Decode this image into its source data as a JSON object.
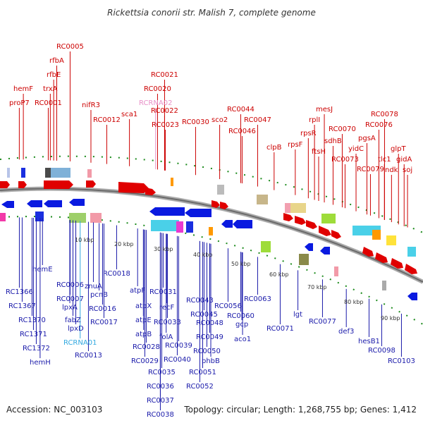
{
  "title": "Rickettsia conorii str. Malish 7, complete genome",
  "footer": {
    "accession": "Accession: NC_003103",
    "summary": "Topology: circular; Length: 1,268,755 bp; Genes: 1,412"
  },
  "ticks": [
    "10 kbp",
    "20 kbp",
    "30 kbp",
    "40 kbp",
    "50 kbp",
    "60 kbp",
    "70 kbp",
    "80 kbp",
    "90 kbp"
  ],
  "top_labels": [
    "proP7",
    "hemF",
    "RC0001",
    "trxA",
    "rfbE",
    "rfbA",
    "RC0005",
    "nifR3",
    "RC0012",
    "sca1",
    "RCRNA02",
    "RC0023",
    "RC0022",
    "RC0020",
    "RC0021",
    "RC0030",
    "sco2",
    "RC0046",
    "RC0044",
    "RC0047",
    "clpB",
    "rpsF",
    "rplI",
    "rpsR",
    "mesJ",
    "ftsH",
    "sdhB",
    "RC0070",
    "RC0073",
    "yidC",
    "pgsA",
    "RC0076",
    "RC0078",
    "RC0079",
    "glpT",
    "tlc1",
    "gidA",
    "ndk",
    "soj"
  ],
  "bottom_labels": [
    "RC1366",
    "RC1367",
    "hemE",
    "RC1370",
    "RC1371",
    "RC1372",
    "hemH",
    "RC0006",
    "RC0007",
    "lpxA",
    "fabZ",
    "lpxD",
    "RCRNA01",
    "RC0013",
    "znuA",
    "pcnB",
    "RC0016",
    "RC0017",
    "RC0018",
    "atpF",
    "atpX",
    "atpE",
    "atpB",
    "RC0028",
    "RC0029",
    "RC0031",
    "RC0033",
    "RC0035",
    "RC0036",
    "RC0037",
    "RC0038",
    "recF",
    "folA",
    "RC0039",
    "RC0040",
    "RC0043",
    "RC0045",
    "RC0048",
    "RC0049",
    "RC0050",
    "RC0051",
    "RC0052",
    "phbB",
    "RC0056",
    "RC0060",
    "gcp",
    "aco1",
    "RC0063",
    "RC0071",
    "lgt",
    "RC0077",
    "def3",
    "hesB1",
    "RC0098",
    "RC0103"
  ]
}
